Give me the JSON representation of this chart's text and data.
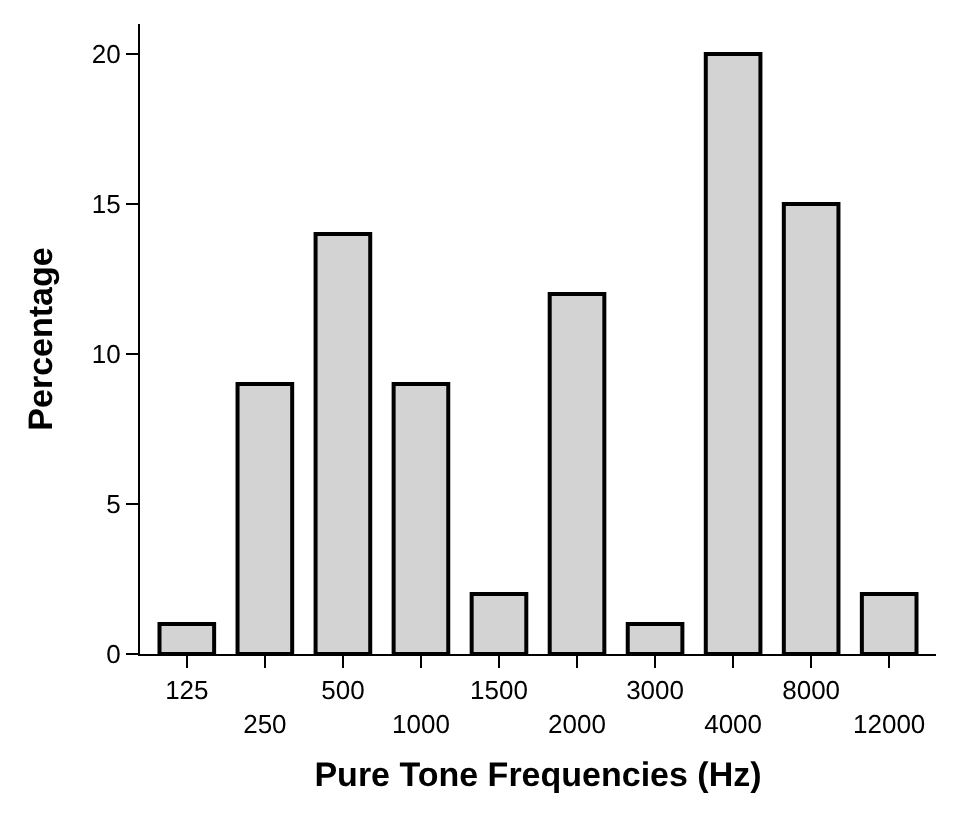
{
  "chart_data": {
    "type": "bar",
    "xlabel": "Pure Tone Frequencies (Hz)",
    "ylabel": "Percentage",
    "categories": [
      "125",
      "250",
      "500",
      "1000",
      "1500",
      "2000",
      "3000",
      "4000",
      "8000",
      "12000"
    ],
    "values": [
      1,
      9,
      14,
      9,
      2,
      12,
      1,
      20,
      15,
      2
    ],
    "color": "#d3d3d3",
    "ylim": [
      0,
      21
    ],
    "yticks": [
      0,
      5,
      10,
      15,
      20
    ],
    "grid": false
  }
}
